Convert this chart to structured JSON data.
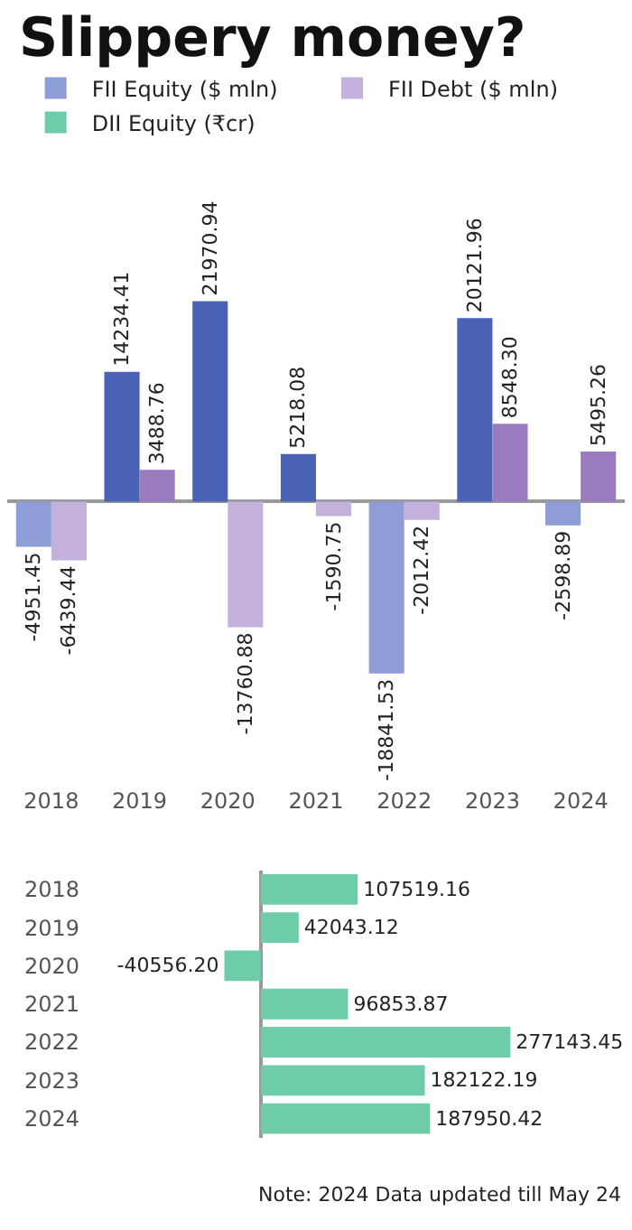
{
  "chart_data": [
    {
      "type": "bar",
      "title": "Slippery money?",
      "categories": [
        "2018",
        "2019",
        "2020",
        "2021",
        "2022",
        "2023",
        "2024"
      ],
      "legend": "top",
      "tick_labels": "x",
      "series": [
        {
          "name": "FII Equity ($ mln)",
          "color": "#4a62b6",
          "colors": [
            "#8e9dd6",
            "#4a62b6",
            "#4a62b6",
            "#4a62b6",
            "#8e9dd6",
            "#4a62b6",
            "#8e9dd6"
          ],
          "values": [
            -4951.45,
            14234.41,
            21970.94,
            5218.08,
            -18841.53,
            20121.96,
            -2598.89
          ],
          "value_labels": [
            "-4951.45",
            "14234.41",
            "21970.94",
            "5218.08",
            "-18841.53",
            "20121.96",
            "-2598.89"
          ]
        },
        {
          "name": "FII Debt ($ mln)",
          "color": "#9b7bc0",
          "colors": [
            "#c3b0dc",
            "#9b7bc0",
            "#c3b0dc",
            "#c3b0dc",
            "#c3b0dc",
            "#9b7bc0",
            "#9b7bc0"
          ],
          "values": [
            -6439.44,
            3488.76,
            -13760.88,
            -1590.75,
            -2012.42,
            8548.3,
            5495.26
          ],
          "value_labels": [
            "-6439.44",
            "3488.76",
            "-13760.88",
            "-1590.75",
            "-2012.42",
            "8548.30",
            "5495.26"
          ]
        }
      ]
    },
    {
      "type": "bar",
      "orientation": "horizontal",
      "categories": [
        "2018",
        "2019",
        "2020",
        "2021",
        "2022",
        "2023",
        "2024"
      ],
      "legend": "top",
      "tick_labels": "y",
      "annotations": [
        "Note: 2024 Data updated till May 24"
      ],
      "series": [
        {
          "name": "DII Equity (₹cr)",
          "color": "#6fcca8",
          "values": [
            107519.16,
            42043.12,
            -40556.2,
            96853.87,
            277143.45,
            182122.19,
            187950.42
          ],
          "value_labels": [
            "107519.16",
            "42043.12",
            "-40556.20",
            "96853.87",
            "277143.45",
            "182122.19",
            "187950.42"
          ]
        }
      ]
    }
  ]
}
